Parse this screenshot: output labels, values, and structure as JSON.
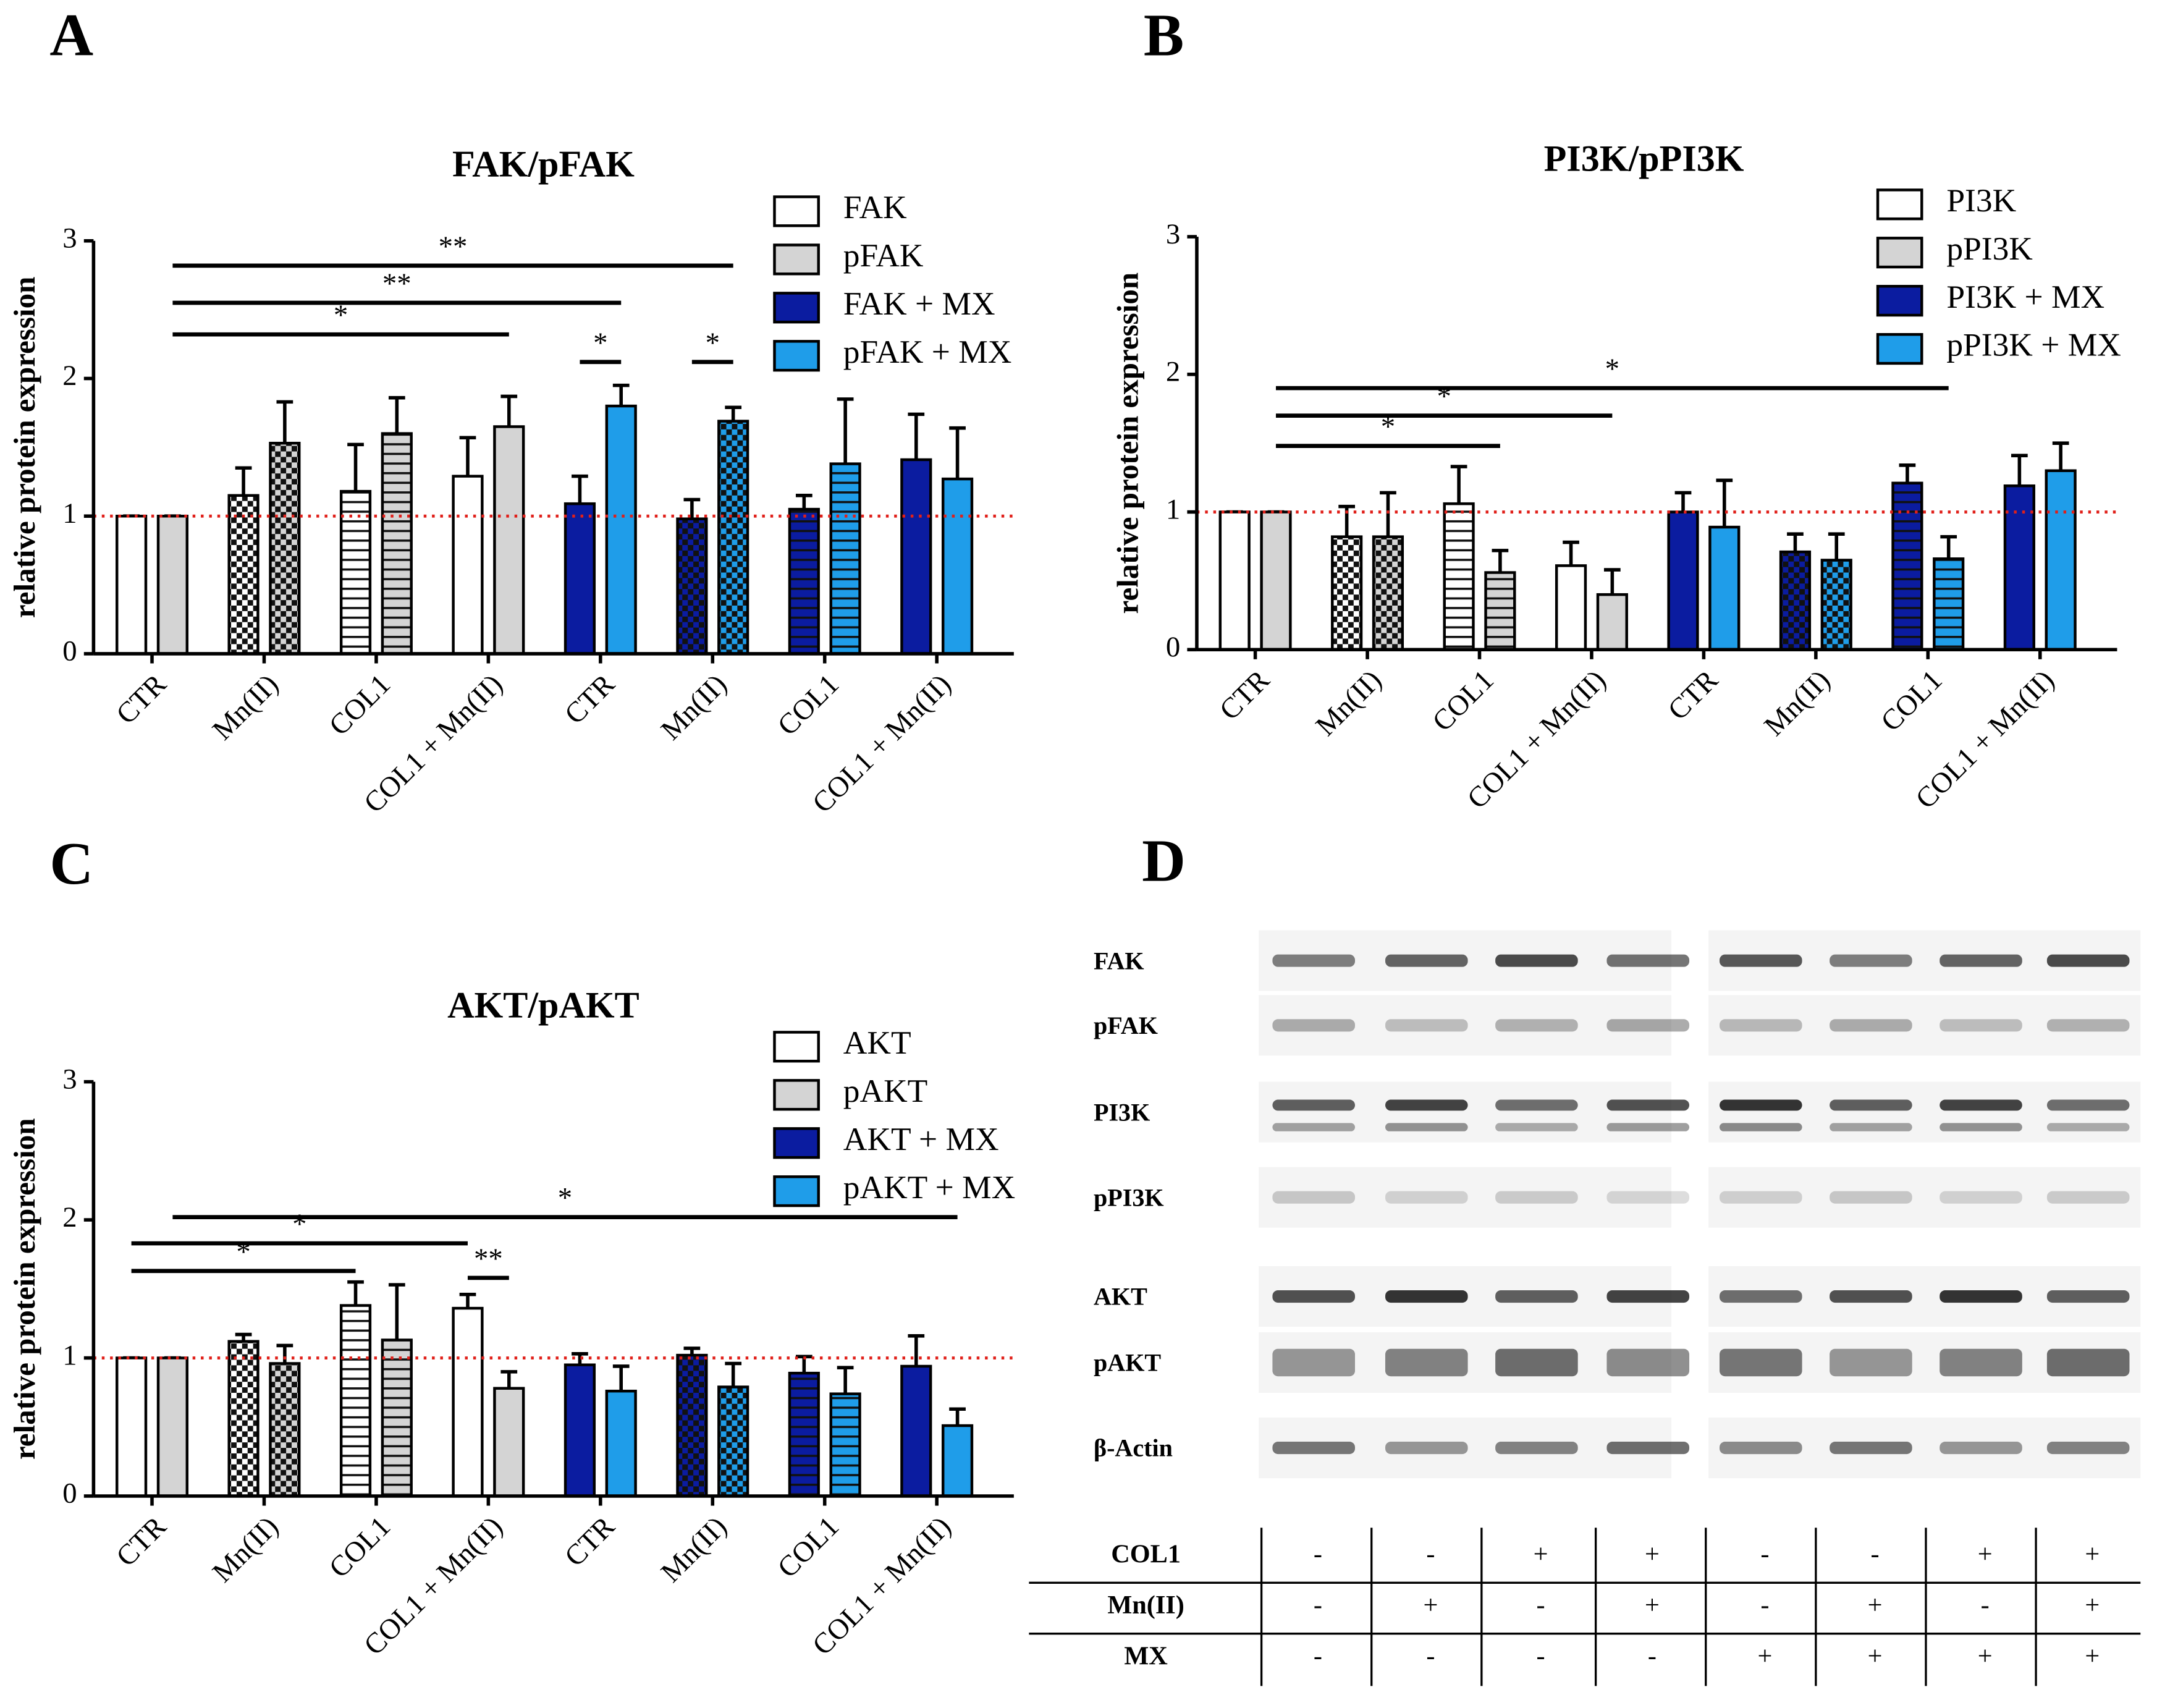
{
  "chart_data": [
    {
      "type": "bar",
      "panel_label": "A",
      "title": "FAK/pFAK",
      "ylabel": "relative protein expression",
      "categories": [
        "CTR",
        "Mn(II)",
        "COL1",
        "COL1 + Mn(II)",
        "CTR",
        "Mn(II)",
        "COL1",
        "COL1 + Mn(II)"
      ],
      "patterns": [
        "none",
        "checker",
        "stripes",
        "none",
        "none",
        "checker",
        "stripes",
        "none"
      ],
      "series": [
        {
          "name": "FAK",
          "color": "#ffffff",
          "values": [
            1,
            1.15,
            1.18,
            1.29,
            null,
            null,
            null,
            null
          ],
          "errors": [
            0,
            0.2,
            0.34,
            0.28,
            null,
            null,
            null,
            null
          ]
        },
        {
          "name": "pFAK",
          "color": "#d4d4d4",
          "values": [
            1,
            1.53,
            1.6,
            1.65,
            null,
            null,
            null,
            null
          ],
          "errors": [
            0,
            0.3,
            0.26,
            0.22,
            null,
            null,
            null,
            null
          ]
        },
        {
          "name": "FAK + MX",
          "color": "#0b1ca0",
          "values": [
            null,
            null,
            null,
            null,
            1.09,
            0.98,
            1.05,
            1.41
          ],
          "errors": [
            null,
            null,
            null,
            null,
            0.2,
            0.14,
            0.1,
            0.33
          ]
        },
        {
          "name": "pFAK + MX",
          "color": "#1f9de9",
          "values": [
            null,
            null,
            null,
            null,
            1.8,
            1.69,
            1.38,
            1.27
          ],
          "errors": [
            null,
            null,
            null,
            null,
            0.15,
            0.1,
            0.47,
            0.37
          ]
        }
      ],
      "ylim": [
        0,
        3
      ],
      "yticks": [
        0,
        1,
        2,
        3
      ],
      "refline": 1,
      "annotations": [
        {
          "text": "**",
          "y": 2.82,
          "between": [
            1,
            11
          ]
        },
        {
          "text": "**",
          "y": 2.55,
          "between": [
            1,
            9
          ]
        },
        {
          "text": "*",
          "y": 2.32,
          "between": [
            1,
            7
          ]
        },
        {
          "text": "*",
          "y": 2.12,
          "between": [
            8,
            9
          ]
        },
        {
          "text": "*",
          "y": 2.12,
          "between": [
            10,
            11
          ]
        }
      ]
    },
    {
      "type": "bar",
      "panel_label": "B",
      "title": "PI3K/pPI3K",
      "ylabel": "relative protein expression",
      "categories": [
        "CTR",
        "Mn(II)",
        "COL1",
        "COL1 + Mn(II)",
        "CTR",
        "Mn(II)",
        "COL1",
        "COL1 + Mn(II)"
      ],
      "patterns": [
        "none",
        "checker",
        "stripes",
        "none",
        "none",
        "checker",
        "stripes",
        "none"
      ],
      "series": [
        {
          "name": "PI3K",
          "color": "#ffffff",
          "values": [
            1,
            0.82,
            1.06,
            0.61,
            null,
            null,
            null,
            null
          ],
          "errors": [
            0,
            0.22,
            0.27,
            0.17,
            null,
            null,
            null,
            null
          ]
        },
        {
          "name": "pPI3K",
          "color": "#d4d4d4",
          "values": [
            1,
            0.82,
            0.56,
            0.4,
            null,
            null,
            null,
            null
          ],
          "errors": [
            0,
            0.32,
            0.16,
            0.18,
            null,
            null,
            null,
            null
          ]
        },
        {
          "name": "PI3K + MX",
          "color": "#0b1ca0",
          "values": [
            null,
            null,
            null,
            null,
            1,
            0.71,
            1.21,
            1.19
          ],
          "errors": [
            null,
            null,
            null,
            null,
            0.14,
            0.13,
            0.13,
            0.22
          ]
        },
        {
          "name": "pPI3K + MX",
          "color": "#1f9de9",
          "values": [
            null,
            null,
            null,
            null,
            0.89,
            0.65,
            0.66,
            1.3
          ],
          "errors": [
            null,
            null,
            null,
            null,
            0.34,
            0.19,
            0.16,
            0.2
          ]
        }
      ],
      "ylim": [
        0,
        3
      ],
      "yticks": [
        0,
        1,
        2,
        3
      ],
      "refline": 1,
      "annotations": [
        {
          "text": "*",
          "y": 1.9,
          "between": [
            1,
            13
          ]
        },
        {
          "text": "*",
          "y": 1.7,
          "between": [
            1,
            7
          ]
        },
        {
          "text": "*",
          "y": 1.48,
          "between": [
            1,
            5
          ]
        }
      ]
    },
    {
      "type": "bar",
      "panel_label": "C",
      "title": "AKT/pAKT",
      "ylabel": "relative protein expression",
      "categories": [
        "CTR",
        "Mn(II)",
        "COL1",
        "COL1 + Mn(II)",
        "CTR",
        "Mn(II)",
        "COL1",
        "COL1 + Mn(II)"
      ],
      "patterns": [
        "none",
        "checker",
        "stripes",
        "none",
        "none",
        "checker",
        "stripes",
        "none"
      ],
      "series": [
        {
          "name": "AKT",
          "color": "#ffffff",
          "values": [
            1,
            1.12,
            1.38,
            1.36,
            null,
            null,
            null,
            null
          ],
          "errors": [
            0,
            0.05,
            0.17,
            0.1,
            null,
            null,
            null,
            null
          ]
        },
        {
          "name": "pAKT",
          "color": "#d4d4d4",
          "values": [
            1,
            0.96,
            1.13,
            0.78,
            null,
            null,
            null,
            null
          ],
          "errors": [
            0,
            0.13,
            0.4,
            0.12,
            null,
            null,
            null,
            null
          ]
        },
        {
          "name": "AKT + MX",
          "color": "#0b1ca0",
          "values": [
            null,
            null,
            null,
            null,
            0.95,
            1.02,
            0.89,
            0.94
          ],
          "errors": [
            null,
            null,
            null,
            null,
            0.08,
            0.05,
            0.12,
            0.22
          ]
        },
        {
          "name": "pAKT + MX",
          "color": "#1f9de9",
          "values": [
            null,
            null,
            null,
            null,
            0.76,
            0.79,
            0.74,
            0.51
          ],
          "errors": [
            null,
            null,
            null,
            null,
            0.18,
            0.17,
            0.19,
            0.12
          ]
        }
      ],
      "ylim": [
        0,
        3
      ],
      "yticks": [
        0,
        1,
        2,
        3
      ],
      "refline": 1,
      "annotations": [
        {
          "text": "*",
          "y": 2.02,
          "between": [
            1,
            15
          ]
        },
        {
          "text": "*",
          "y": 1.83,
          "between": [
            0,
            6
          ]
        },
        {
          "text": "*",
          "y": 1.63,
          "between": [
            0,
            4
          ]
        },
        {
          "text": "**",
          "y": 1.58,
          "between": [
            6,
            7
          ]
        }
      ]
    }
  ],
  "blot": {
    "panel_label": "D",
    "bands": [
      "FAK",
      "pFAK",
      "PI3K",
      "pPI3K",
      "AKT",
      "pAKT",
      "β-Actin"
    ],
    "table": {
      "rows": [
        {
          "label": "COL1",
          "cells": [
            "-",
            "-",
            "+",
            "+",
            "-",
            "-",
            "+",
            "+"
          ]
        },
        {
          "label": "Mn(II)",
          "cells": [
            "-",
            "+",
            "-",
            "+",
            "-",
            "+",
            "-",
            "+"
          ]
        },
        {
          "label": "MX",
          "cells": [
            "-",
            "-",
            "-",
            "-",
            "+",
            "+",
            "+",
            "+"
          ]
        }
      ]
    }
  }
}
